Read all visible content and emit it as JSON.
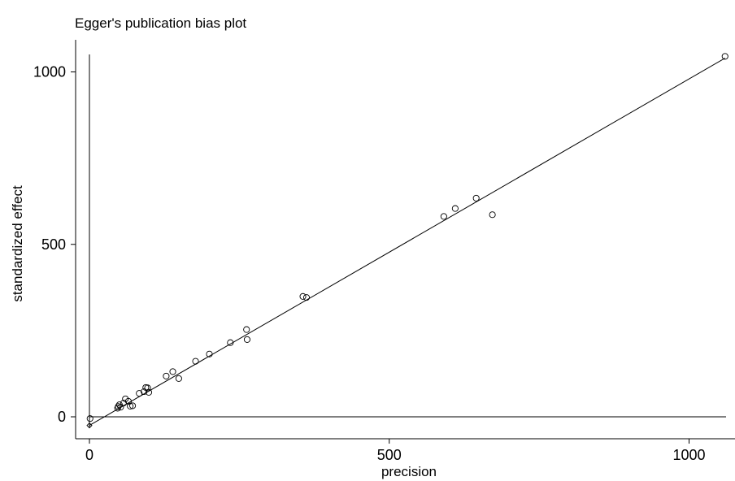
{
  "chart_data": {
    "type": "scatter",
    "title": "Egger's publication bias plot",
    "xlabel": "precision",
    "ylabel": "standardized effect",
    "xlim": [
      -25,
      1070
    ],
    "ylim": [
      -60,
      1070
    ],
    "xticks": [
      0,
      500,
      1000
    ],
    "yticks": [
      0,
      500,
      1000
    ],
    "grid": false,
    "legend": "none",
    "points": [
      {
        "x": 1,
        "y": -5
      },
      {
        "x": 47,
        "y": 25
      },
      {
        "x": 48,
        "y": 30
      },
      {
        "x": 50,
        "y": 35
      },
      {
        "x": 52,
        "y": 28
      },
      {
        "x": 57,
        "y": 40
      },
      {
        "x": 60,
        "y": 52
      },
      {
        "x": 65,
        "y": 45
      },
      {
        "x": 68,
        "y": 31
      },
      {
        "x": 72,
        "y": 32
      },
      {
        "x": 83,
        "y": 68
      },
      {
        "x": 91,
        "y": 73
      },
      {
        "x": 94,
        "y": 85
      },
      {
        "x": 97,
        "y": 84
      },
      {
        "x": 99,
        "y": 71
      },
      {
        "x": 128,
        "y": 118
      },
      {
        "x": 139,
        "y": 131
      },
      {
        "x": 149,
        "y": 111
      },
      {
        "x": 177,
        "y": 161
      },
      {
        "x": 200,
        "y": 182
      },
      {
        "x": 235,
        "y": 215
      },
      {
        "x": 262,
        "y": 253
      },
      {
        "x": 263,
        "y": 224
      },
      {
        "x": 356,
        "y": 349
      },
      {
        "x": 362,
        "y": 346
      },
      {
        "x": 591,
        "y": 581
      },
      {
        "x": 610,
        "y": 604
      },
      {
        "x": 645,
        "y": 634
      },
      {
        "x": 672,
        "y": 586
      },
      {
        "x": 1060,
        "y": 1045
      }
    ],
    "fit_line": {
      "x": [
        0,
        1060
      ],
      "y": [
        -25,
        1040
      ]
    },
    "intercept_marker": {
      "x": 0,
      "y": -25
    }
  }
}
